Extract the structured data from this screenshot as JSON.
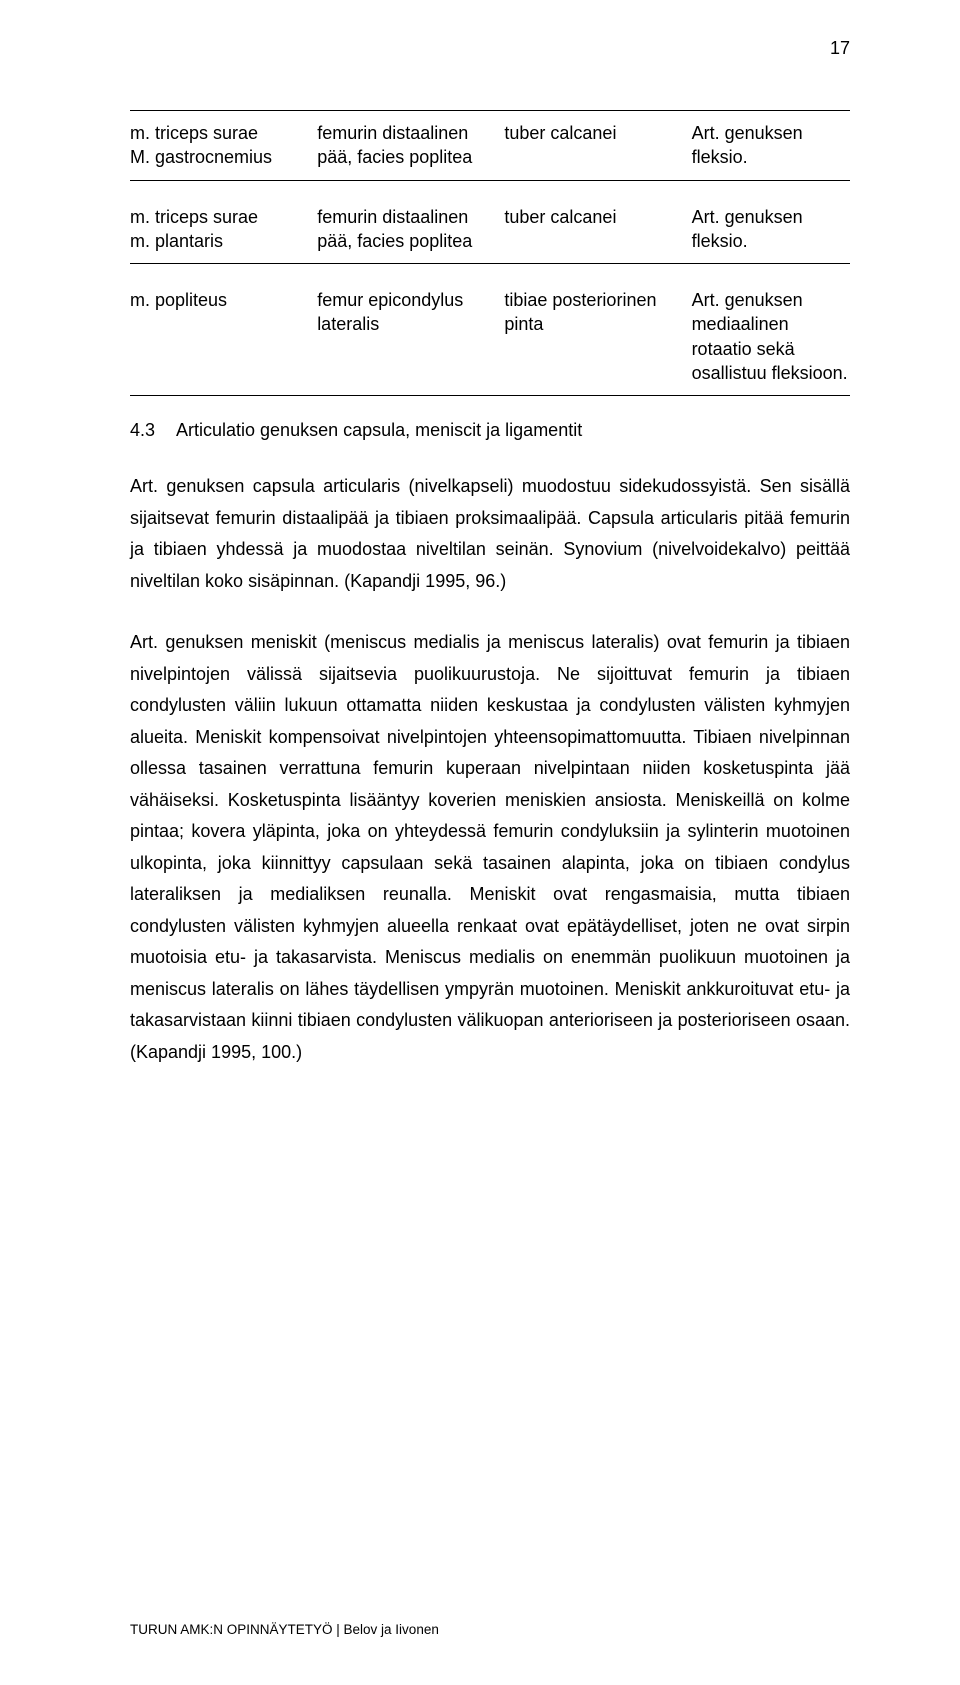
{
  "page_number": "17",
  "table": {
    "rows": [
      {
        "c0": "m. triceps surae\nM. gastrocnemius",
        "c1": "femurin distaalinen\npää, facies poplitea",
        "c2": "tuber calcanei",
        "c3": "Art. genuksen\nfleksio."
      },
      {
        "c0": "m. triceps surae\nm. plantaris",
        "c1": "femurin distaalinen\npää, facies poplitea",
        "c2": "tuber calcanei",
        "c3": "Art. genuksen\nfleksio."
      },
      {
        "c0": "m. popliteus",
        "c1": "femur epicondylus\nlateralis",
        "c2": "tibiae posteriorinen\npinta",
        "c3": "Art. genuksen\nmediaalinen\nrotaatio sekä\nosallistuu fleksioon."
      }
    ]
  },
  "section": {
    "number": "4.3",
    "title": "Articulatio genuksen capsula, meniscit ja ligamentit"
  },
  "paragraphs": {
    "p1": "Art. genuksen capsula articularis (nivelkapseli) muodostuu sidekudossyistä. Sen sisällä sijaitsevat femurin distaalipää ja tibiaen proksimaalipää. Capsula articularis pitää femurin ja tibiaen yhdessä ja muodostaa niveltilan seinän. Synovium (nivelvoidekalvo) peittää niveltilan koko sisäpinnan. (Kapandji 1995, 96.)",
    "p2": "Art. genuksen meniskit (meniscus medialis ja meniscus lateralis) ovat femurin ja tibiaen nivelpintojen välissä sijaitsevia puolikuurustoja. Ne sijoittuvat femurin ja tibiaen condylusten väliin lukuun ottamatta niiden keskustaa ja condylusten välisten kyhmyjen alueita. Meniskit kompensoivat nivelpintojen yhteensopimattomuutta. Tibiaen nivelpinnan ollessa tasainen verrattuna femurin kuperaan nivelpintaan niiden kosketuspinta jää vähäiseksi. Kosketuspinta lisääntyy koverien meniskien ansiosta.  Meniskeillä on kolme pintaa; kovera yläpinta, joka on yhteydessä femurin condyluksiin ja sylinterin muotoinen ulkopinta, joka kiinnittyy capsulaan sekä tasainen alapinta, joka on tibiaen condylus lateraliksen ja medialiksen reunalla. Meniskit ovat rengasmaisia, mutta tibiaen condylusten välisten kyhmyjen alueella renkaat ovat epätäydelliset, joten ne ovat sirpin muotoisia etu- ja takasarvista. Meniscus medialis on enemmän puolikuun muotoinen ja meniscus lateralis on lähes täydellisen ympyrän muotoinen. Meniskit ankkuroituvat etu- ja takasarvistaan kiinni tibiaen condylusten välikuopan anterioriseen ja posterioriseen osaan. (Kapandji 1995, 100.)"
  },
  "footer": "TURUN AMK:N OPINNÄYTETYÖ | Belov ja Iivonen"
}
